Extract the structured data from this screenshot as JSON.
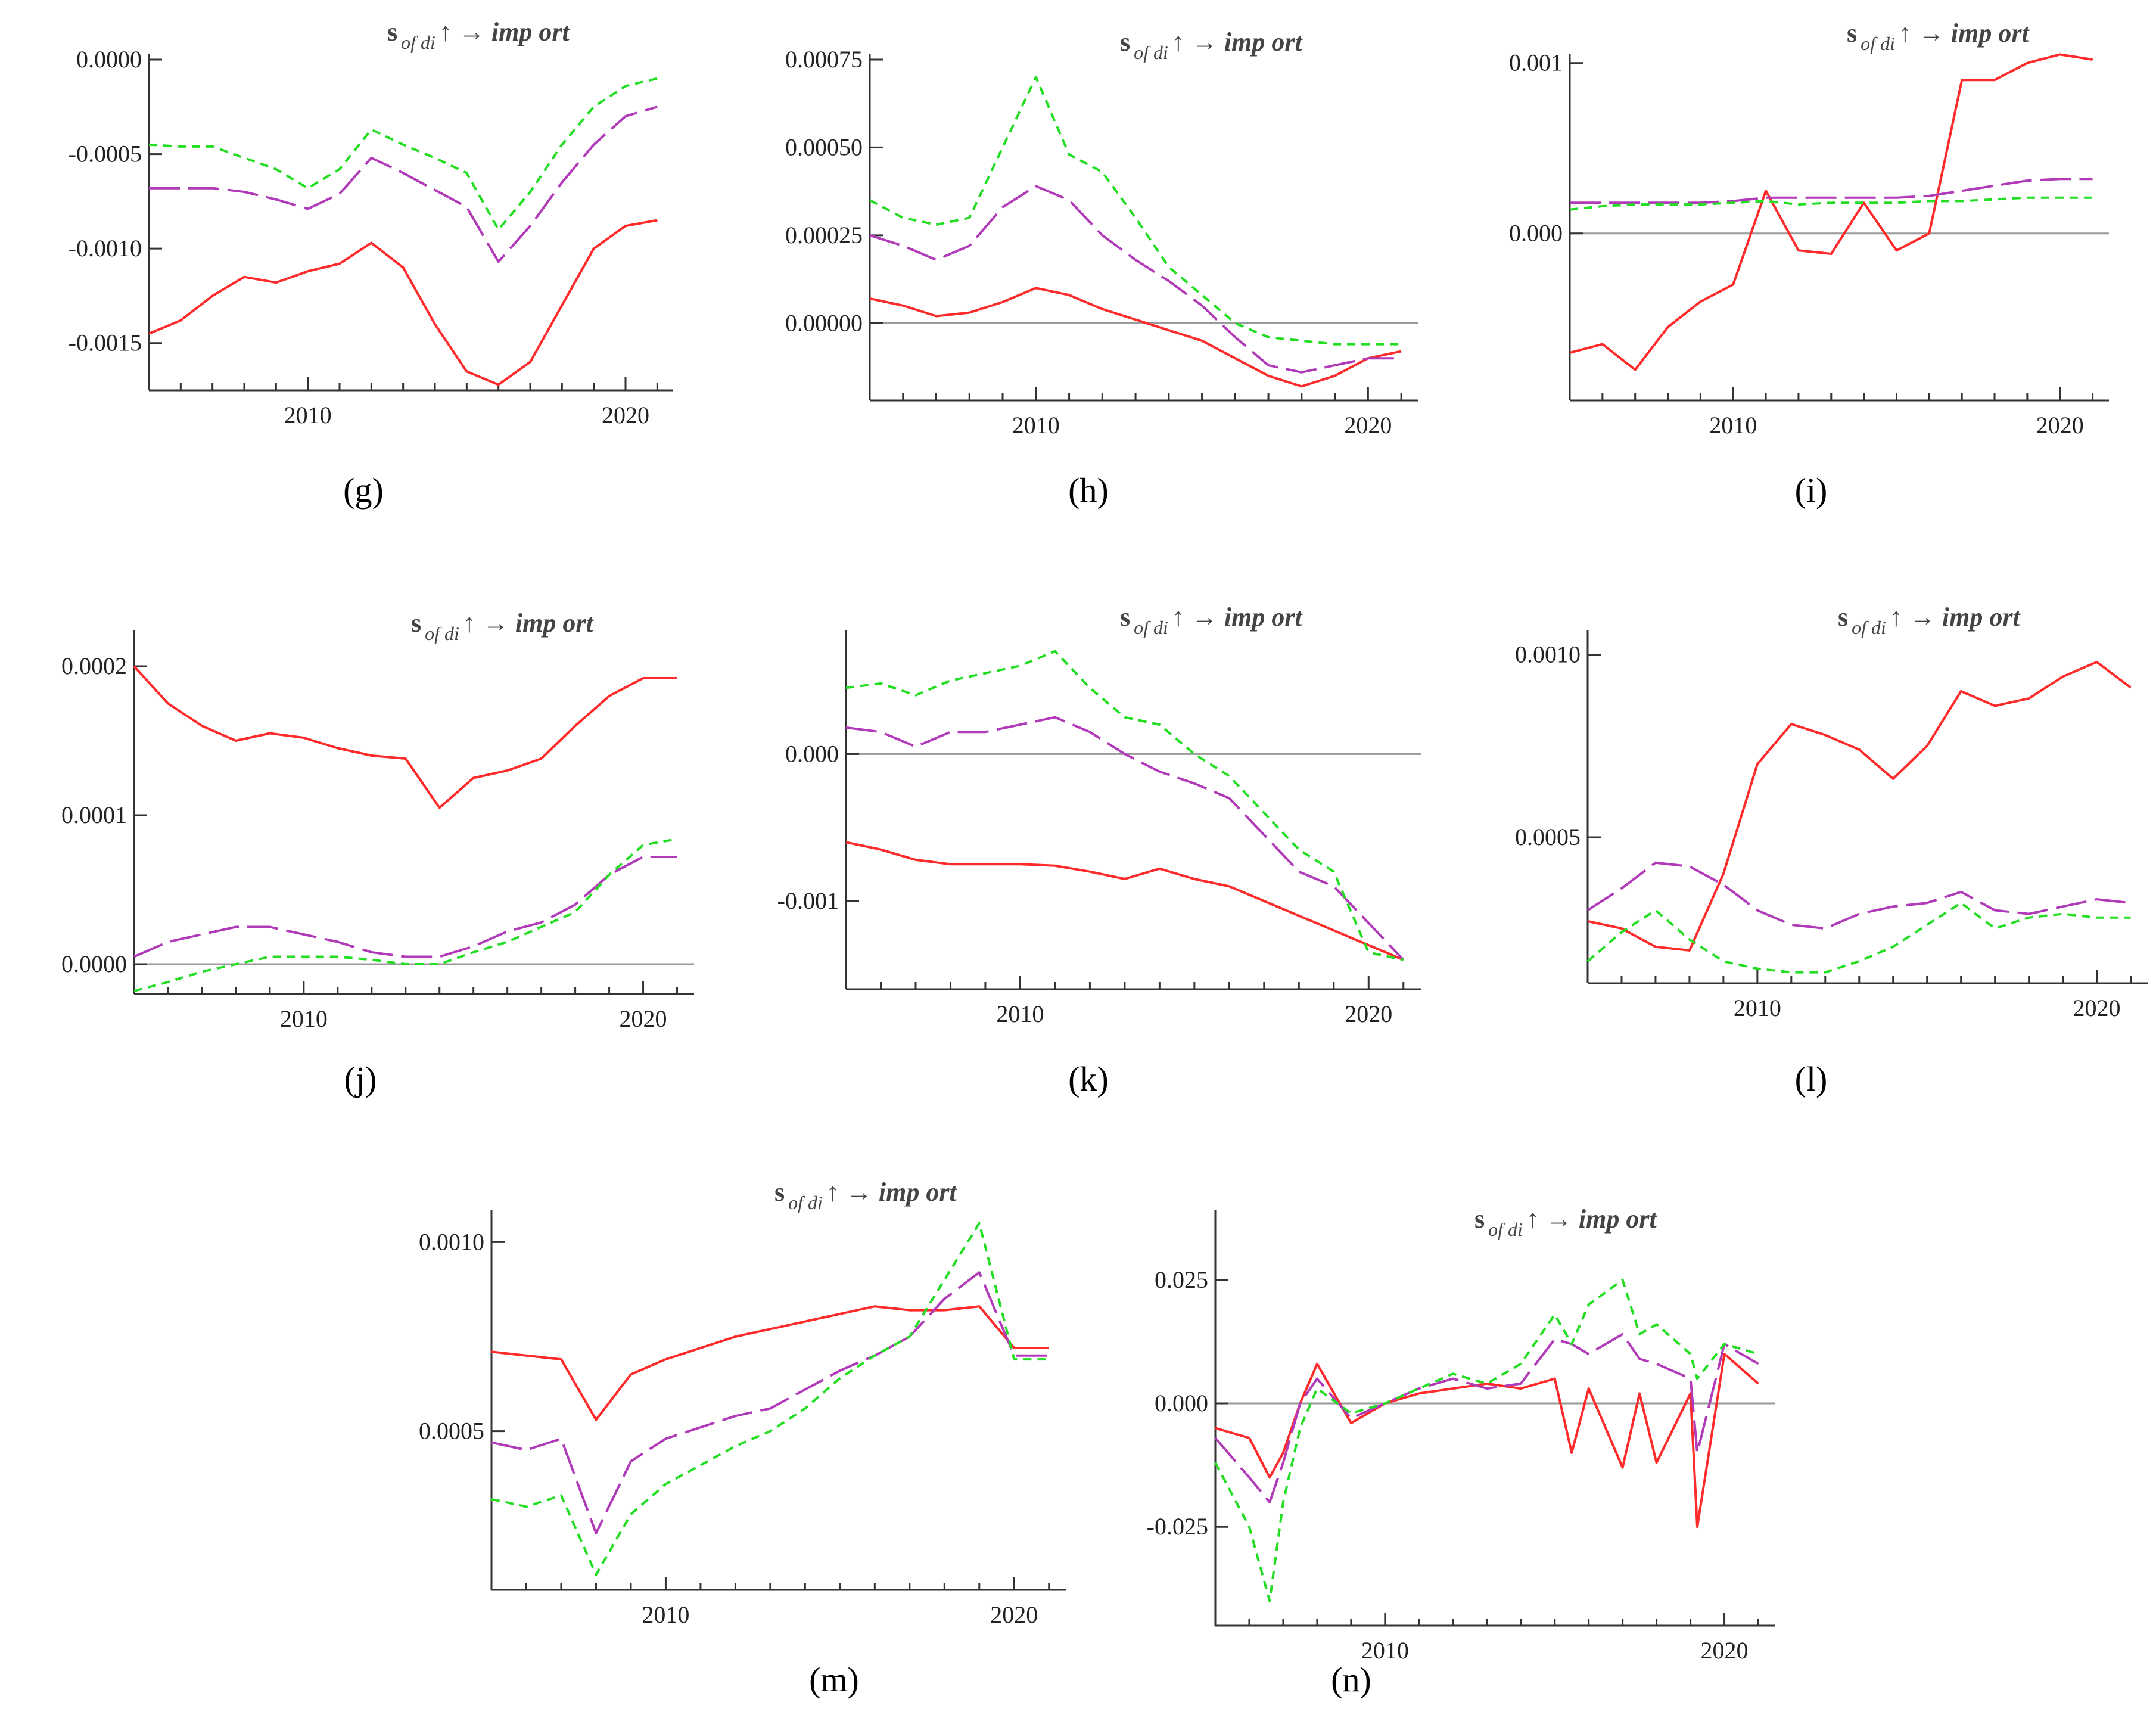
{
  "colors": {
    "red": "#ff2a2a",
    "purple": "#b13ab9",
    "green": "#22dd22",
    "axis": "#333333",
    "zero": "#9a9a9a"
  },
  "series_style": [
    "solid",
    "longdash",
    "dotted"
  ],
  "panel_title": {
    "base": "s",
    "sub": "of di",
    "arrow": "↑ →",
    "tail": "imp ort"
  },
  "chart_data": [
    {
      "type": "line",
      "id": "g",
      "label": "(g)",
      "title": "s of di ↑ → imp ort",
      "xlim": [
        2005,
        2021.5
      ],
      "ylim": [
        -0.00175,
        0.0
      ],
      "zero_line": false,
      "yticks": [
        0.0,
        -0.0005,
        -0.001,
        -0.0015
      ],
      "ytick_labels": [
        "0.0000",
        "-0.0005",
        "-0.0010",
        "-0.0015"
      ],
      "xticks": [
        2010,
        2020
      ],
      "xtick_labels": [
        "2010",
        "2020"
      ],
      "x": [
        2005,
        2006,
        2007,
        2008,
        2009,
        2010,
        2011,
        2012,
        2013,
        2014,
        2015,
        2016,
        2017,
        2018,
        2019,
        2020,
        2021
      ],
      "series": [
        {
          "name": "red",
          "values": [
            -0.00145,
            -0.00138,
            -0.00125,
            -0.00115,
            -0.00118,
            -0.00112,
            -0.00108,
            -0.00097,
            -0.0011,
            -0.0014,
            -0.00165,
            -0.00172,
            -0.0016,
            -0.0013,
            -0.001,
            -0.00088,
            -0.00085
          ]
        },
        {
          "name": "purple",
          "values": [
            -0.00068,
            -0.00068,
            -0.00068,
            -0.0007,
            -0.00074,
            -0.00079,
            -0.00071,
            -0.00052,
            -0.0006,
            -0.00069,
            -0.00078,
            -0.00107,
            -0.00088,
            -0.00065,
            -0.00045,
            -0.0003,
            -0.00025
          ]
        },
        {
          "name": "green",
          "values": [
            -0.00045,
            -0.00046,
            -0.00046,
            -0.00052,
            -0.00058,
            -0.00068,
            -0.00058,
            -0.00037,
            -0.00045,
            -0.00052,
            -0.0006,
            -0.0009,
            -0.0007,
            -0.00045,
            -0.00025,
            -0.00014,
            -0.0001
          ]
        }
      ]
    },
    {
      "type": "line",
      "id": "h",
      "label": "(h)",
      "title": "s of di ↑ → imp ort",
      "xlim": [
        2005,
        2021.5
      ],
      "ylim": [
        -0.00022,
        0.00075
      ],
      "zero_line": true,
      "yticks": [
        0.00075,
        0.0005,
        0.00025,
        0.0
      ],
      "ytick_labels": [
        "0.00075",
        "0.00050",
        "0.00025",
        "0.00000"
      ],
      "xticks": [
        2010,
        2020
      ],
      "xtick_labels": [
        "2010",
        "2020"
      ],
      "x": [
        2005,
        2006,
        2007,
        2008,
        2009,
        2010,
        2011,
        2012,
        2013,
        2014,
        2015,
        2016,
        2017,
        2018,
        2019,
        2020,
        2021
      ],
      "series": [
        {
          "name": "red",
          "values": [
            7e-05,
            5e-05,
            2e-05,
            3e-05,
            6e-05,
            0.0001,
            8e-05,
            4e-05,
            1e-05,
            -2e-05,
            -5e-05,
            -0.0001,
            -0.00015,
            -0.00018,
            -0.00015,
            -0.0001,
            -8e-05
          ]
        },
        {
          "name": "purple",
          "values": [
            0.00025,
            0.00022,
            0.00018,
            0.00022,
            0.00033,
            0.00039,
            0.00035,
            0.00025,
            0.00018,
            0.00012,
            5e-05,
            -4e-05,
            -0.00012,
            -0.00014,
            -0.00012,
            -0.0001,
            -0.0001
          ]
        },
        {
          "name": "green",
          "values": [
            0.00035,
            0.0003,
            0.00028,
            0.0003,
            0.0005,
            0.0007,
            0.00048,
            0.00043,
            0.0003,
            0.00016,
            8e-05,
            0.0,
            -4e-05,
            -5e-05,
            -6e-05,
            -6e-05,
            -6e-05
          ]
        }
      ]
    },
    {
      "type": "line",
      "id": "i",
      "label": "(i)",
      "title": "s of di ↑ → imp ort",
      "xlim": [
        2005,
        2021.5
      ],
      "ylim": [
        -0.00098,
        0.00102
      ],
      "zero_line": true,
      "yticks": [
        0.001,
        0.0
      ],
      "ytick_labels": [
        "0.001",
        "0.000"
      ],
      "xticks": [
        2010,
        2020
      ],
      "xtick_labels": [
        "2010",
        "2020"
      ],
      "x": [
        2005,
        2006,
        2007,
        2008,
        2009,
        2010,
        2011,
        2012,
        2013,
        2014,
        2015,
        2016,
        2017,
        2018,
        2019,
        2020,
        2021
      ],
      "series": [
        {
          "name": "red",
          "values": [
            -0.0007,
            -0.00065,
            -0.0008,
            -0.00055,
            -0.0004,
            -0.0003,
            0.00025,
            -0.0001,
            -0.00012,
            0.00018,
            -0.0001,
            0.0,
            0.0009,
            0.0009,
            0.001,
            0.00105,
            0.00102
          ]
        },
        {
          "name": "purple",
          "values": [
            0.00018,
            0.00018,
            0.00018,
            0.00018,
            0.00018,
            0.00019,
            0.00021,
            0.00021,
            0.00021,
            0.00021,
            0.00021,
            0.00022,
            0.00025,
            0.00028,
            0.00031,
            0.00032,
            0.00032
          ]
        },
        {
          "name": "green",
          "values": [
            0.00014,
            0.00016,
            0.00017,
            0.00017,
            0.00017,
            0.00018,
            0.00019,
            0.00017,
            0.00018,
            0.00018,
            0.00018,
            0.00019,
            0.00019,
            0.0002,
            0.00021,
            0.00021,
            0.00021
          ]
        }
      ]
    },
    {
      "type": "line",
      "id": "j",
      "label": "(j)",
      "title": "s of di ↑ → imp ort",
      "xlim": [
        2005,
        2021.5
      ],
      "ylim": [
        -2e-05,
        0.00022
      ],
      "zero_line": true,
      "yticks": [
        0.0002,
        0.0001,
        0.0
      ],
      "ytick_labels": [
        "0.0002",
        "0.0001",
        "0.0000"
      ],
      "xticks": [
        2010,
        2020
      ],
      "xtick_labels": [
        "2010",
        "2020"
      ],
      "x": [
        2005,
        2006,
        2007,
        2008,
        2009,
        2010,
        2011,
        2012,
        2013,
        2014,
        2015,
        2016,
        2017,
        2018,
        2019,
        2020,
        2021
      ],
      "series": [
        {
          "name": "red",
          "values": [
            0.0002,
            0.000175,
            0.00016,
            0.00015,
            0.000155,
            0.000152,
            0.000145,
            0.00014,
            0.000138,
            0.000105,
            0.000125,
            0.00013,
            0.000138,
            0.00016,
            0.00018,
            0.000192,
            0.000192
          ]
        },
        {
          "name": "purple",
          "values": [
            5e-06,
            1.5e-05,
            2e-05,
            2.5e-05,
            2.5e-05,
            2e-05,
            1.5e-05,
            8e-06,
            5e-06,
            5e-06,
            1.2e-05,
            2.2e-05,
            2.8e-05,
            4e-05,
            6e-05,
            7.2e-05,
            7.2e-05
          ]
        },
        {
          "name": "green",
          "values": [
            -1.8e-05,
            -1.2e-05,
            -5e-06,
            0.0,
            5e-06,
            5e-06,
            5e-06,
            3e-06,
            0.0,
            0.0,
            8e-06,
            1.5e-05,
            2.5e-05,
            3.5e-05,
            6e-05,
            8e-05,
            8.4e-05
          ]
        }
      ]
    },
    {
      "type": "line",
      "id": "k",
      "label": "(k)",
      "title": "s of di ↑ → imp ort",
      "xlim": [
        2005,
        2021.5
      ],
      "ylim": [
        -0.0016,
        0.0008
      ],
      "zero_line": true,
      "yticks": [
        0.0,
        -0.001
      ],
      "ytick_labels": [
        "0.000",
        "-0.001"
      ],
      "xticks": [
        2010,
        2020
      ],
      "xtick_labels": [
        "2010",
        "2020"
      ],
      "x": [
        2005,
        2006,
        2007,
        2008,
        2009,
        2010,
        2011,
        2012,
        2013,
        2014,
        2015,
        2016,
        2017,
        2018,
        2019,
        2020,
        2021
      ],
      "series": [
        {
          "name": "red",
          "values": [
            -0.0006,
            -0.00065,
            -0.00072,
            -0.00075,
            -0.00075,
            -0.00075,
            -0.00076,
            -0.0008,
            -0.00085,
            -0.00078,
            -0.00085,
            -0.0009,
            -0.001,
            -0.0011,
            -0.0012,
            -0.0013,
            -0.0014
          ]
        },
        {
          "name": "purple",
          "values": [
            0.00018,
            0.00015,
            5e-05,
            0.00015,
            0.00015,
            0.0002,
            0.00025,
            0.00015,
            0.0,
            -0.00012,
            -0.0002,
            -0.0003,
            -0.00055,
            -0.0008,
            -0.0009,
            -0.00115,
            -0.0014
          ]
        },
        {
          "name": "green",
          "values": [
            0.00045,
            0.00048,
            0.0004,
            0.0005,
            0.00055,
            0.0006,
            0.0007,
            0.00045,
            0.00025,
            0.0002,
            0.0,
            -0.00015,
            -0.0004,
            -0.00065,
            -0.0008,
            -0.00135,
            -0.0014
          ]
        }
      ]
    },
    {
      "type": "line",
      "id": "l",
      "label": "(l)",
      "title": "s of di ↑ → imp ort",
      "xlim": [
        2005,
        2021.5
      ],
      "ylim": [
        0.0001,
        0.00105
      ],
      "zero_line": false,
      "yticks": [
        0.001,
        0.0005
      ],
      "ytick_labels": [
        "0.0010",
        "0.0005"
      ],
      "xticks": [
        2010,
        2020
      ],
      "xtick_labels": [
        "2010",
        "2020"
      ],
      "x": [
        2005,
        2006,
        2007,
        2008,
        2009,
        2010,
        2011,
        2012,
        2013,
        2014,
        2015,
        2016,
        2017,
        2018,
        2019,
        2020,
        2021
      ],
      "series": [
        {
          "name": "red",
          "values": [
            0.00027,
            0.00025,
            0.0002,
            0.00019,
            0.0004,
            0.0007,
            0.00081,
            0.00078,
            0.00074,
            0.00066,
            0.00075,
            0.0009,
            0.00086,
            0.00088,
            0.00094,
            0.00098,
            0.00091
          ]
        },
        {
          "name": "purple",
          "values": [
            0.0003,
            0.00036,
            0.00043,
            0.00042,
            0.00037,
            0.0003,
            0.00026,
            0.00025,
            0.00029,
            0.00031,
            0.00032,
            0.00035,
            0.0003,
            0.00029,
            0.00031,
            0.00033,
            0.00032
          ]
        },
        {
          "name": "green",
          "values": [
            0.00016,
            0.00024,
            0.0003,
            0.00022,
            0.00016,
            0.00014,
            0.00013,
            0.00013,
            0.00016,
            0.0002,
            0.00026,
            0.00032,
            0.00025,
            0.00028,
            0.00029,
            0.00028,
            0.00028
          ]
        }
      ]
    },
    {
      "type": "line",
      "id": "m",
      "label": "(m)",
      "title": "s of di ↑ → imp ort",
      "xlim": [
        2005,
        2021.5
      ],
      "ylim": [
        8e-05,
        0.00107
      ],
      "zero_line": false,
      "yticks": [
        0.001,
        0.0005
      ],
      "ytick_labels": [
        "0.0010",
        "0.0005"
      ],
      "xticks": [
        2010,
        2020
      ],
      "xtick_labels": [
        "2010",
        "2020"
      ],
      "x": [
        2005,
        2006,
        2007,
        2008,
        2009,
        2010,
        2011,
        2012,
        2013,
        2014,
        2015,
        2016,
        2017,
        2018,
        2019,
        2020,
        2021
      ],
      "series": [
        {
          "name": "red",
          "values": [
            0.00071,
            0.0007,
            0.00069,
            0.00053,
            0.00065,
            0.00069,
            0.00072,
            0.00075,
            0.00077,
            0.00079,
            0.00081,
            0.00083,
            0.00082,
            0.00082,
            0.00083,
            0.00072,
            0.00072
          ]
        },
        {
          "name": "purple",
          "values": [
            0.00047,
            0.00045,
            0.00048,
            0.00023,
            0.00042,
            0.00048,
            0.00051,
            0.00054,
            0.00056,
            0.00061,
            0.00066,
            0.0007,
            0.00075,
            0.00085,
            0.00092,
            0.0007,
            0.0007
          ]
        },
        {
          "name": "green",
          "values": [
            0.00032,
            0.0003,
            0.00033,
            0.00012,
            0.00028,
            0.00036,
            0.00041,
            0.00046,
            0.0005,
            0.00056,
            0.00064,
            0.0007,
            0.00075,
            0.0009,
            0.00105,
            0.00069,
            0.00069
          ]
        }
      ]
    },
    {
      "type": "line",
      "id": "n",
      "label": "(n)",
      "title": "s of di ↑ → imp ort",
      "xlim": [
        2005,
        2021.5
      ],
      "ylim": [
        -0.045,
        0.038
      ],
      "zero_line": true,
      "yticks": [
        0.025,
        0.0,
        -0.025
      ],
      "ytick_labels": [
        "0.025",
        "0.000",
        "-0.025"
      ],
      "xticks": [
        2010,
        2020
      ],
      "xtick_labels": [
        "2010",
        "2020"
      ],
      "x": [
        2005,
        2006,
        2006.6,
        2007,
        2007.5,
        2008,
        2009,
        2010,
        2011,
        2012,
        2013,
        2014,
        2015,
        2015.5,
        2016,
        2017,
        2017.5,
        2018,
        2019,
        2019.2,
        2020,
        2021
      ],
      "series": [
        {
          "name": "red",
          "values": [
            -0.005,
            -0.007,
            -0.015,
            -0.01,
            0.0,
            0.008,
            -0.004,
            0.0,
            0.002,
            0.003,
            0.004,
            0.003,
            0.005,
            -0.01,
            0.003,
            -0.013,
            0.002,
            -0.012,
            0.002,
            -0.025,
            0.01,
            0.004
          ]
        },
        {
          "name": "purple",
          "values": [
            -0.007,
            -0.015,
            -0.02,
            -0.012,
            0.0,
            0.005,
            -0.003,
            0.0,
            0.003,
            0.005,
            0.003,
            0.004,
            0.013,
            0.012,
            0.01,
            0.014,
            0.009,
            0.008,
            0.005,
            -0.01,
            0.012,
            0.008
          ]
        },
        {
          "name": "green",
          "values": [
            -0.012,
            -0.025,
            -0.04,
            -0.02,
            -0.005,
            0.003,
            -0.002,
            0.0,
            0.003,
            0.006,
            0.004,
            0.008,
            0.018,
            0.012,
            0.02,
            0.025,
            0.014,
            0.016,
            0.01,
            0.005,
            0.012,
            0.01
          ]
        }
      ]
    }
  ]
}
